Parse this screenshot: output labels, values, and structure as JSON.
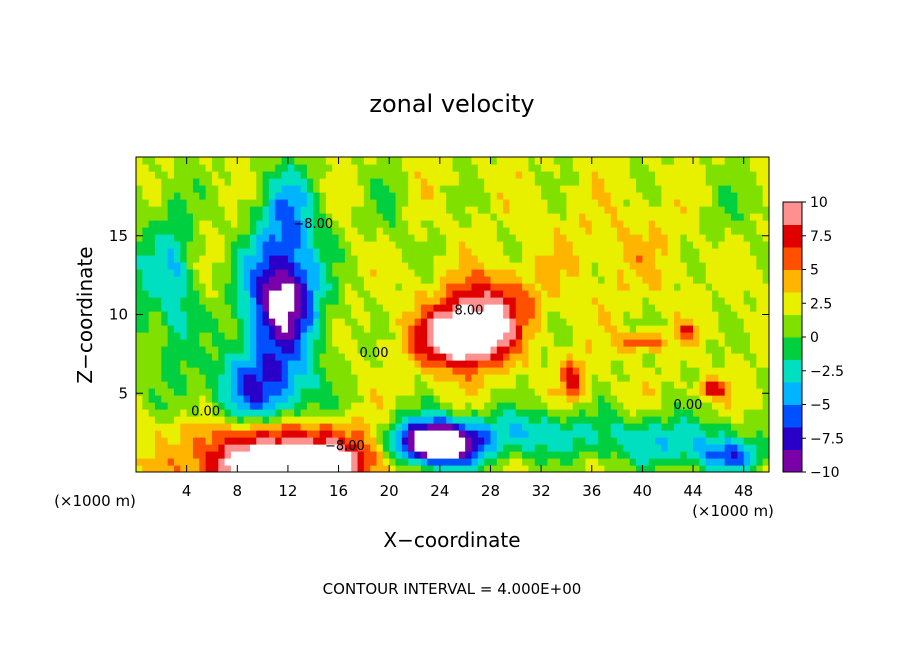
{
  "chart_data": {
    "type": "heatmap",
    "title": "zonal velocity",
    "xlabel": "X−coordinate",
    "ylabel": "Z−coordinate",
    "x_unit": "(×1000 m)",
    "xlim": [
      0,
      50
    ],
    "ylim": [
      0,
      20
    ],
    "x_ticks": [
      4,
      8,
      12,
      16,
      20,
      24,
      28,
      32,
      36,
      40,
      44,
      48
    ],
    "y_ticks": [
      5,
      10,
      15
    ],
    "x_tick_labels": [
      "4",
      "8",
      "12",
      "16",
      "20",
      "24",
      "28",
      "32",
      "36",
      "40",
      "44",
      "48"
    ],
    "y_tick_labels": [
      "5",
      "10",
      "15"
    ],
    "colorbar": {
      "min": -10,
      "max": 10,
      "tick_values": [
        10,
        7.5,
        5,
        2.5,
        0,
        -2.5,
        -5,
        -7.5,
        -10
      ],
      "tick_labels": [
        "10",
        "7.5",
        "5",
        "2.5",
        "0",
        "−2.5",
        "−5",
        "−7.5",
        "−10"
      ],
      "colors": [
        "#7a00a8",
        "#2a00c8",
        "#0050ff",
        "#00b4ff",
        "#00e0c0",
        "#00d040",
        "#80e000",
        "#e8f000",
        "#ffb400",
        "#ff5000",
        "#e00000",
        "#ff9090"
      ]
    },
    "contour_interval_label": "CONTOUR INTERVAL = 4.000E+00",
    "contour_labels": [
      {
        "text": "−8.00",
        "x": 14.0,
        "y": 15.5
      },
      {
        "text": "0.00",
        "x": 5.5,
        "y": 3.6
      },
      {
        "text": "−8.00",
        "x": 16.5,
        "y": 1.4
      },
      {
        "text": "0.00",
        "x": 18.8,
        "y": 7.3
      },
      {
        "text": "8.00",
        "x": 26.3,
        "y": 10.0
      },
      {
        "text": "0.00",
        "x": 43.6,
        "y": 4.0
      }
    ],
    "features": [
      {
        "x": 11.5,
        "y": 11.0,
        "sx": 3.0,
        "sy": 3.5,
        "amp": -13
      },
      {
        "x": 12.0,
        "y": 16.5,
        "sx": 2.5,
        "sy": 3.0,
        "amp": -6
      },
      {
        "x": 10.0,
        "y": 5.5,
        "sx": 4.0,
        "sy": 2.5,
        "amp": -8
      },
      {
        "x": 3.0,
        "y": 12.0,
        "sx": 1.8,
        "sy": 6.0,
        "amp": -5
      },
      {
        "x": 12.0,
        "y": 0.6,
        "sx": 6.5,
        "sy": 1.4,
        "amp": 15
      },
      {
        "x": 11.0,
        "y": 2.6,
        "sx": 8.0,
        "sy": 0.9,
        "amp": 4
      },
      {
        "x": 26.0,
        "y": 8.6,
        "sx": 3.5,
        "sy": 1.9,
        "amp": 13
      },
      {
        "x": 28.0,
        "y": 11.0,
        "sx": 3.5,
        "sy": 1.8,
        "amp": 5
      },
      {
        "x": 24.5,
        "y": 1.8,
        "sx": 3.0,
        "sy": 1.4,
        "amp": -14
      },
      {
        "x": 22.0,
        "y": 2.0,
        "sx": 2.5,
        "sy": 1.6,
        "amp": -7
      },
      {
        "x": 31.0,
        "y": 2.5,
        "sx": 5.5,
        "sy": 1.5,
        "amp": -5
      },
      {
        "x": 42.0,
        "y": 2.0,
        "sx": 6.0,
        "sy": 1.6,
        "amp": -5
      },
      {
        "x": 47.0,
        "y": 1.0,
        "sx": 3.0,
        "sy": 1.0,
        "amp": -6
      },
      {
        "x": 34.5,
        "y": 6.0,
        "sx": 1.0,
        "sy": 1.4,
        "amp": 5
      },
      {
        "x": 40.0,
        "y": 8.3,
        "sx": 1.8,
        "sy": 0.6,
        "amp": 5
      },
      {
        "x": 45.5,
        "y": 5.3,
        "sx": 1.2,
        "sy": 0.6,
        "amp": 6
      },
      {
        "x": 43.5,
        "y": 9.0,
        "sx": 0.8,
        "sy": 0.6,
        "amp": 4
      },
      {
        "x": 38.0,
        "y": 14.0,
        "sx": 6.0,
        "sy": 3.0,
        "amp": 1.5
      },
      {
        "x": 47.0,
        "y": 16.5,
        "sx": 2.5,
        "sy": 2.5,
        "amp": -1.5
      },
      {
        "x": 0.5,
        "y": 12.0,
        "sx": 1.0,
        "sy": 4.0,
        "amp": -3
      },
      {
        "x": 20.0,
        "y": 17.0,
        "sx": 1.5,
        "sy": 3.0,
        "amp": -2
      }
    ],
    "background_value": 2
  }
}
